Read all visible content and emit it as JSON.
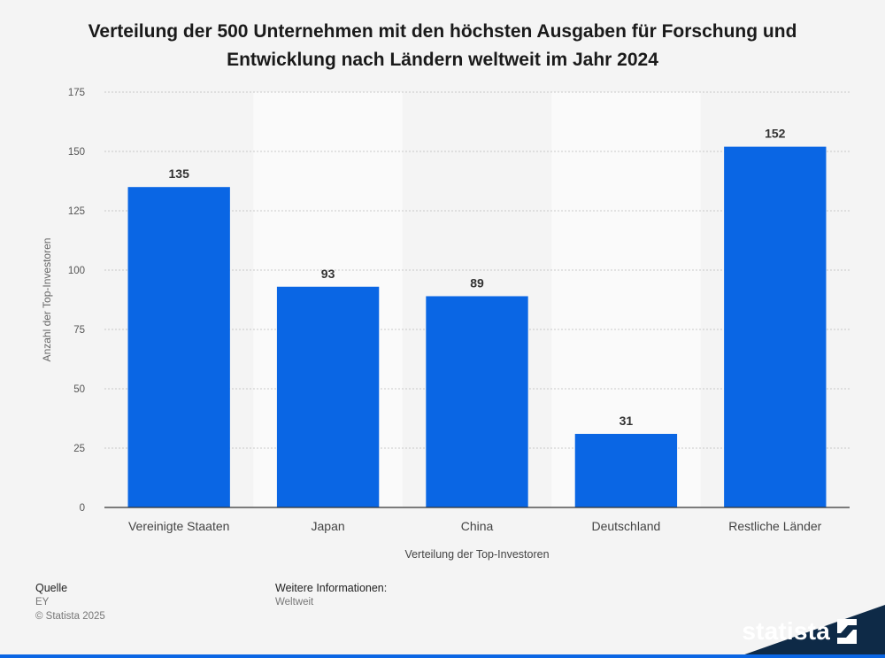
{
  "chart_data": {
    "type": "bar",
    "title": "Verteilung der 500 Unternehmen mit den höchsten Ausgaben für Forschung und Entwicklung nach Ländern weltweit im Jahr 2024",
    "xlabel": "Verteilung der Top-Investoren",
    "ylabel": "Anzahl der Top-Investoren",
    "categories": [
      "Vereinigte Staaten",
      "Japan",
      "China",
      "Deutschland",
      "Restliche Länder"
    ],
    "values": [
      135,
      93,
      89,
      31,
      152
    ],
    "ylim": [
      0,
      175
    ],
    "yticks": [
      0,
      25,
      50,
      75,
      100,
      125,
      150,
      175
    ],
    "grid": true,
    "bar_color": "#0a66e4"
  },
  "footer": {
    "source_label": "Quelle",
    "source_value": "EY",
    "copyright": "© Statista 2025",
    "info_label": "Weitere Informationen:",
    "info_value": "Weltweit"
  },
  "brand": {
    "name": "statista",
    "color": "#0e2a47"
  }
}
